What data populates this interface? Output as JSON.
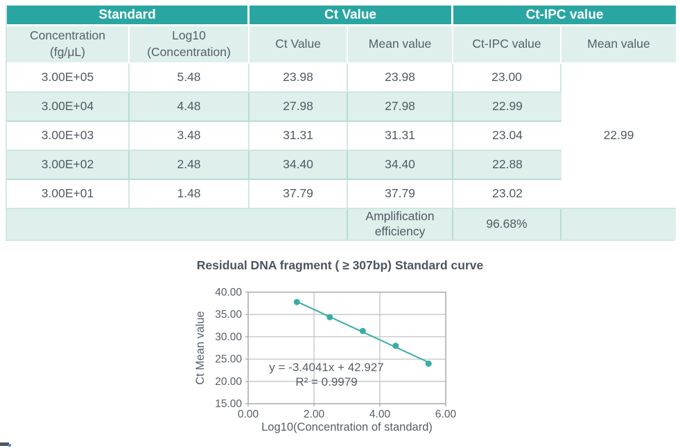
{
  "colors": {
    "header_teal": "#2aa6a2",
    "row_stripe": "#deefec",
    "cell_border": "#cfe7e2",
    "chart_teal": "#3aaca6",
    "grid_gray": "#c3c3c3",
    "text_dark": "#545c65"
  },
  "table": {
    "group_headers": [
      "Standard",
      "Ct Value",
      "Ct-IPC value"
    ],
    "subheaders": [
      "Concentration\n(fg/μL)",
      "Log10\n(Concentration)",
      "Ct Value",
      "Mean value",
      "Ct-IPC value",
      "Mean value"
    ],
    "rows": [
      {
        "concentration": "3.00E+05",
        "log10": "5.48",
        "ct": "23.98",
        "ct_mean": "23.98",
        "ct_ipc": "23.00"
      },
      {
        "concentration": "3.00E+04",
        "log10": "4.48",
        "ct": "27.98",
        "ct_mean": "27.98",
        "ct_ipc": "22.99"
      },
      {
        "concentration": "3.00E+03",
        "log10": "3.48",
        "ct": "31.31",
        "ct_mean": "31.31",
        "ct_ipc": "23.04"
      },
      {
        "concentration": "3.00E+02",
        "log10": "2.48",
        "ct": "34.40",
        "ct_mean": "34.40",
        "ct_ipc": "22.88"
      },
      {
        "concentration": "3.00E+01",
        "log10": "1.48",
        "ct": "37.79",
        "ct_mean": "37.79",
        "ct_ipc": "23.02"
      }
    ],
    "ipc_mean_value": "22.99",
    "footer": {
      "label": "Amplification\nefficiency",
      "value": "96.68%"
    }
  },
  "chart_data": {
    "type": "scatter",
    "title": "Residual DNA fragment ( ≥ 307bp) Standard curve",
    "xlabel": "Log10(Concentration of standard)",
    "ylabel": "Ct Mean value",
    "xlim": [
      0,
      6
    ],
    "ylim": [
      15,
      40
    ],
    "xticks": [
      0,
      2,
      4,
      6
    ],
    "yticks": [
      15,
      20,
      25,
      30,
      35,
      40
    ],
    "tick_decimals": 2,
    "grid": true,
    "legend": null,
    "x": [
      1.48,
      2.48,
      3.48,
      4.48,
      5.48
    ],
    "y": [
      37.79,
      34.4,
      31.31,
      27.98,
      23.98
    ],
    "trendline": {
      "slope": -3.4041,
      "intercept": 42.927,
      "equation": "y = -3.4041x + 42.927",
      "r_squared": "R² = 0.9979"
    }
  }
}
